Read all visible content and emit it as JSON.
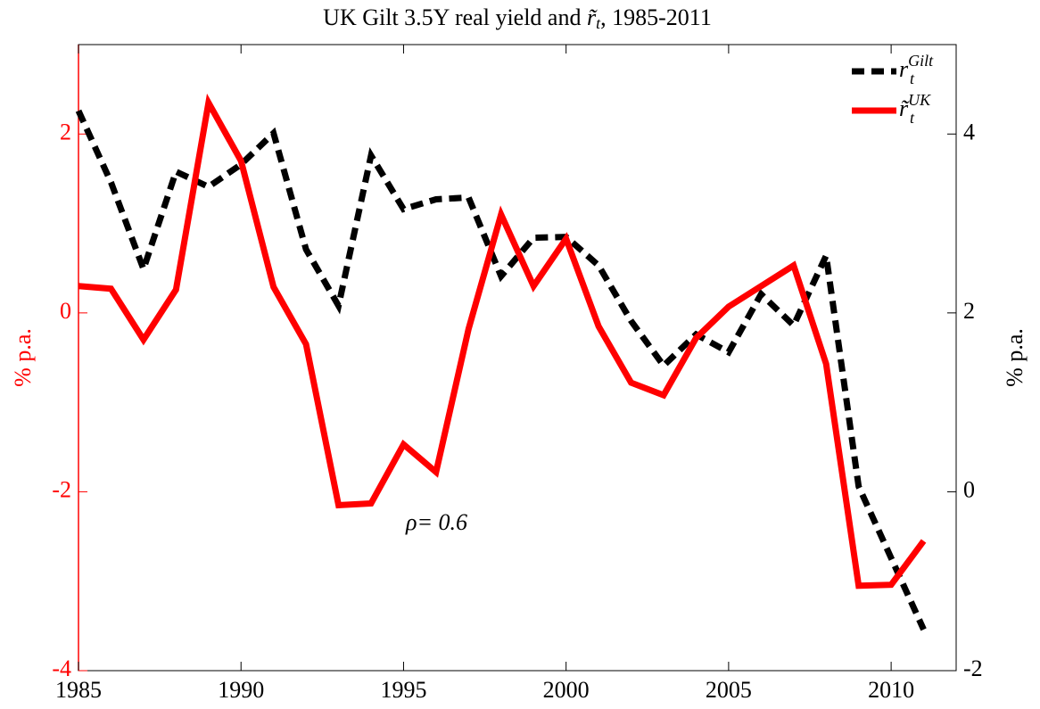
{
  "chart_data": {
    "type": "line",
    "title_parts": [
      "UK Gilt 3.5Y real yield and ",
      "r̃",
      "t",
      ", 1985-2011"
    ],
    "ylabel": "% p.a.",
    "y2label": "% p.a.",
    "annotation": "ρ= 0.6",
    "x": [
      1985,
      1986,
      1987,
      1988,
      1989,
      1990,
      1991,
      1992,
      1993,
      1994,
      1995,
      1996,
      1997,
      1998,
      1999,
      2000,
      2001,
      2002,
      2003,
      2004,
      2005,
      2006,
      2007,
      2008,
      2009,
      2010,
      2011
    ],
    "xlim": [
      1985,
      2012
    ],
    "xticks": [
      1985,
      1990,
      1995,
      2000,
      2005,
      2010
    ],
    "ylim": [
      -4,
      3
    ],
    "yticks": [
      -4,
      -2,
      0,
      2
    ],
    "y2lim": [
      -2,
      5
    ],
    "y2ticks": [
      -2,
      0,
      2,
      4
    ],
    "ycolor": "#ff0000",
    "legend": "upper right",
    "series": [
      {
        "name": "r",
        "name_sub": "t",
        "name_sup": "Gilt",
        "color": "#000000",
        "dash": true,
        "axis": "y2",
        "values": [
          4.26,
          3.46,
          2.49,
          3.58,
          3.41,
          3.66,
          4.01,
          2.71,
          2.08,
          3.76,
          3.16,
          3.27,
          3.29,
          2.41,
          2.84,
          2.85,
          2.53,
          1.91,
          1.41,
          1.76,
          1.56,
          2.21,
          1.86,
          2.64,
          0.06,
          -0.74,
          -1.54
        ]
      },
      {
        "name": "r̃",
        "name_sub": "t",
        "name_sup": "UK",
        "color": "#ff0000",
        "dash": false,
        "axis": "y",
        "values": [
          0.3,
          0.27,
          -0.3,
          0.26,
          2.35,
          1.7,
          0.29,
          -0.35,
          -2.15,
          -2.13,
          -1.47,
          -1.78,
          -0.18,
          1.1,
          0.3,
          0.83,
          -0.15,
          -0.78,
          -0.92,
          -0.28,
          0.07,
          0.3,
          0.53,
          -0.57,
          -3.05,
          -3.04,
          -2.55
        ]
      }
    ]
  }
}
